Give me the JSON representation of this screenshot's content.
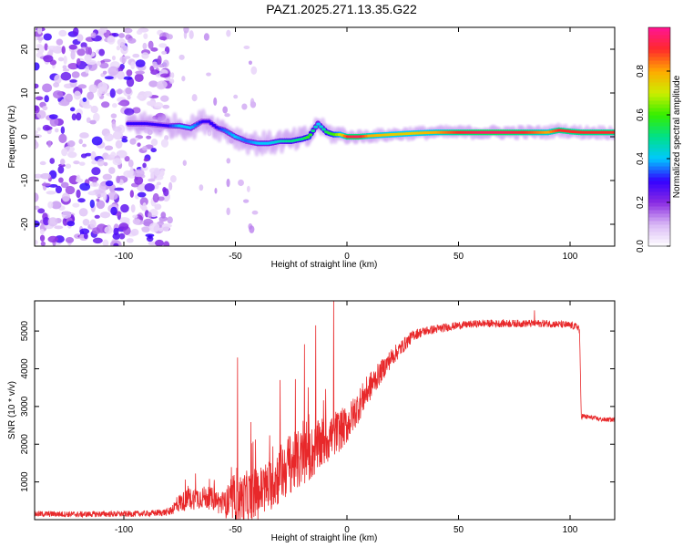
{
  "title": "PAZ1.2025.271.13.35.G22",
  "chart_data": [
    {
      "type": "heatmap",
      "name": "spectrogram",
      "xlabel": "Height of straight line (km)",
      "ylabel": "Frequency (Hz)",
      "xlim": [
        -140,
        120
      ],
      "ylim": [
        -25,
        25
      ],
      "xticks": [
        -100,
        -50,
        0,
        50,
        100
      ],
      "yticks": [
        -20,
        -10,
        0,
        10,
        20
      ],
      "colorbar": {
        "label": "Normalized spectral amplitude",
        "ticks": [
          0.0,
          0.2,
          0.4,
          0.6,
          0.8
        ],
        "tick_labels": [
          "0.0",
          "0.2",
          "0.4",
          "0.6",
          "0.8"
        ],
        "range": [
          0,
          1
        ],
        "colors": [
          "#ffffff",
          "#d9b8f5",
          "#8a2be2",
          "#3300ff",
          "#00c8ff",
          "#00e08a",
          "#33ee00",
          "#ccee00",
          "#ffaa00",
          "#ff2a2a",
          "#ff1493"
        ]
      },
      "ridge": {
        "x": [
          -98,
          -90,
          -80,
          -75,
          -70,
          -65,
          -62,
          -58,
          -55,
          -50,
          -45,
          -40,
          -35,
          -30,
          -25,
          -20,
          -17,
          -15,
          -13,
          -11,
          -9,
          -6,
          -3,
          0,
          5,
          10,
          20,
          30,
          40,
          50,
          60,
          70,
          80,
          90,
          95,
          100,
          105,
          110,
          120
        ],
        "y": [
          3,
          3,
          2.5,
          2.5,
          2,
          3.5,
          3.5,
          2,
          1.5,
          0,
          -1,
          -1.5,
          -1.5,
          -1,
          -1,
          -0.5,
          0,
          1.5,
          3,
          2,
          1,
          0.5,
          0.5,
          0,
          0,
          0.2,
          0.5,
          0.8,
          1,
          1,
          1,
          1,
          1,
          1,
          1.5,
          1.2,
          1,
          1,
          1
        ],
        "amplitude": [
          0.3,
          0.3,
          0.3,
          0.4,
          0.4,
          0.3,
          0.3,
          0.3,
          0.35,
          0.4,
          0.35,
          0.4,
          0.4,
          0.45,
          0.5,
          0.5,
          0.6,
          0.5,
          0.4,
          0.45,
          0.55,
          0.6,
          0.7,
          0.9,
          0.95,
          0.8,
          0.75,
          0.75,
          0.8,
          0.9,
          0.95,
          0.95,
          0.9,
          0.8,
          0.9,
          0.9,
          0.9,
          0.9,
          0.9
        ]
      },
      "noise_region_x": [
        -140,
        -80
      ]
    },
    {
      "type": "line",
      "name": "snr",
      "xlabel": "Height of straight line (km)",
      "ylabel": "SNR (10 * v/v)",
      "xlim": [
        -140,
        120
      ],
      "ylim": [
        0,
        5800
      ],
      "xticks": [
        -100,
        -50,
        0,
        50,
        100
      ],
      "yticks": [
        1000,
        2000,
        3000,
        4000,
        5000
      ],
      "color": "#e8282a",
      "series": [
        {
          "name": "SNR",
          "x": [
            -140,
            -130,
            -120,
            -110,
            -100,
            -90,
            -80,
            -75,
            -70,
            -65,
            -60,
            -55,
            -50,
            -45,
            -40,
            -35,
            -30,
            -25,
            -20,
            -15,
            -10,
            -5,
            0,
            5,
            10,
            15,
            20,
            25,
            30,
            35,
            40,
            50,
            60,
            70,
            80,
            90,
            100,
            104,
            105,
            110,
            115,
            120
          ],
          "y": [
            150,
            150,
            140,
            150,
            150,
            160,
            200,
            450,
            550,
            600,
            550,
            400,
            500,
            600,
            700,
            900,
            1200,
            1500,
            1600,
            1800,
            2100,
            2300,
            2500,
            3000,
            3500,
            3900,
            4300,
            4600,
            4900,
            5000,
            5050,
            5150,
            5200,
            5200,
            5200,
            5200,
            5150,
            5100,
            2750,
            2700,
            2650,
            2650
          ],
          "noise_amplitude": [
            80,
            80,
            80,
            80,
            80,
            80,
            100,
            250,
            300,
            300,
            300,
            350,
            600,
            700,
            700,
            700,
            800,
            800,
            800,
            700,
            700,
            600,
            500,
            450,
            400,
            300,
            250,
            200,
            150,
            120,
            120,
            100,
            100,
            100,
            100,
            100,
            100,
            100,
            80,
            60,
            60,
            60
          ]
        }
      ],
      "spikes": [
        {
          "x": -49,
          "y": 4300
        },
        {
          "x": -30,
          "y": 3700
        },
        {
          "x": -19,
          "y": 4650
        },
        {
          "x": -14,
          "y": 5150
        },
        {
          "x": -6,
          "y": 5800
        },
        {
          "x": 84,
          "y": 5550
        }
      ]
    }
  ]
}
